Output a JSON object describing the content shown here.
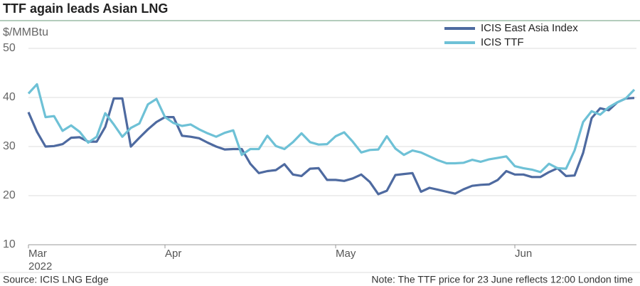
{
  "chart_data": {
    "type": "line",
    "title": "TTF again leads Asian LNG",
    "y_label": "$/MMBtu",
    "year_label": "2022",
    "source": "Source: ICIS LNG Edge",
    "note": "Note: The TTF price for 23 June reflects 12:00 London time",
    "categories": [
      "Mar",
      null,
      null,
      null,
      null,
      null,
      null,
      null,
      null,
      null,
      null,
      null,
      null,
      null,
      null,
      null,
      "Apr",
      null,
      null,
      null,
      null,
      null,
      null,
      null,
      null,
      null,
      null,
      null,
      null,
      null,
      null,
      null,
      null,
      null,
      null,
      null,
      "May",
      null,
      null,
      null,
      null,
      null,
      null,
      null,
      null,
      null,
      null,
      null,
      null,
      null,
      null,
      null,
      null,
      null,
      null,
      null,
      null,
      "Jun",
      null,
      null,
      null,
      null,
      null,
      null,
      null,
      null,
      null,
      null,
      null,
      null,
      null,
      null
    ],
    "series": [
      {
        "name": "ICIS East Asia Index",
        "color": "#4e6aa0",
        "values": [
          37,
          33,
          30,
          30.1,
          30.5,
          31.8,
          31.9,
          31,
          31,
          34,
          39.8,
          39.8,
          30,
          31.8,
          33.5,
          35,
          36,
          36,
          32.2,
          32,
          31.7,
          30.8,
          30,
          29.4,
          29.5,
          29.5,
          26.5,
          24.6,
          25,
          25.2,
          26.4,
          24.3,
          24,
          25.5,
          25.6,
          23.2,
          23.2,
          23,
          23.5,
          24.3,
          22.8,
          20.3,
          21,
          24.2,
          24.4,
          24.6,
          20.8,
          21.6,
          21.2,
          20.8,
          20.4,
          21.3,
          22,
          22.2,
          22.3,
          23.2,
          25,
          24.3,
          24.3,
          23.8,
          23.8,
          24.8,
          25.6,
          24,
          24.1,
          28.7,
          35.8,
          37.8,
          37.4,
          39,
          39.8,
          39.9
        ]
      },
      {
        "name": "ICIS TTF",
        "color": "#6ec1d6",
        "values": [
          40.8,
          42.7,
          36,
          36.2,
          33.2,
          34.3,
          33,
          30.8,
          32,
          36.8,
          34.5,
          32,
          33.8,
          34.7,
          38.6,
          39.7,
          36,
          34.8,
          34.2,
          34.5,
          33.5,
          32.7,
          32,
          32.8,
          33.3,
          28.3,
          29.5,
          29.5,
          32.2,
          30.1,
          29.5,
          30.9,
          32.7,
          30.9,
          30.4,
          30.5,
          32.1,
          32.9,
          31,
          28.8,
          29.3,
          29.4,
          32.1,
          29.6,
          28.3,
          29.2,
          28.8,
          28,
          27.2,
          26.6,
          26.6,
          26.7,
          27.3,
          26.9,
          27.4,
          27.7,
          28,
          26,
          25.6,
          25.3,
          24.8,
          26.5,
          25.6,
          25.5,
          29.2,
          35,
          37.2,
          36.5,
          38,
          39,
          39.8,
          41.6
        ]
      }
    ],
    "ylim": [
      10,
      50
    ],
    "yticks": [
      10,
      20,
      30,
      40,
      50
    ],
    "grid": true,
    "legend": "top-right"
  }
}
